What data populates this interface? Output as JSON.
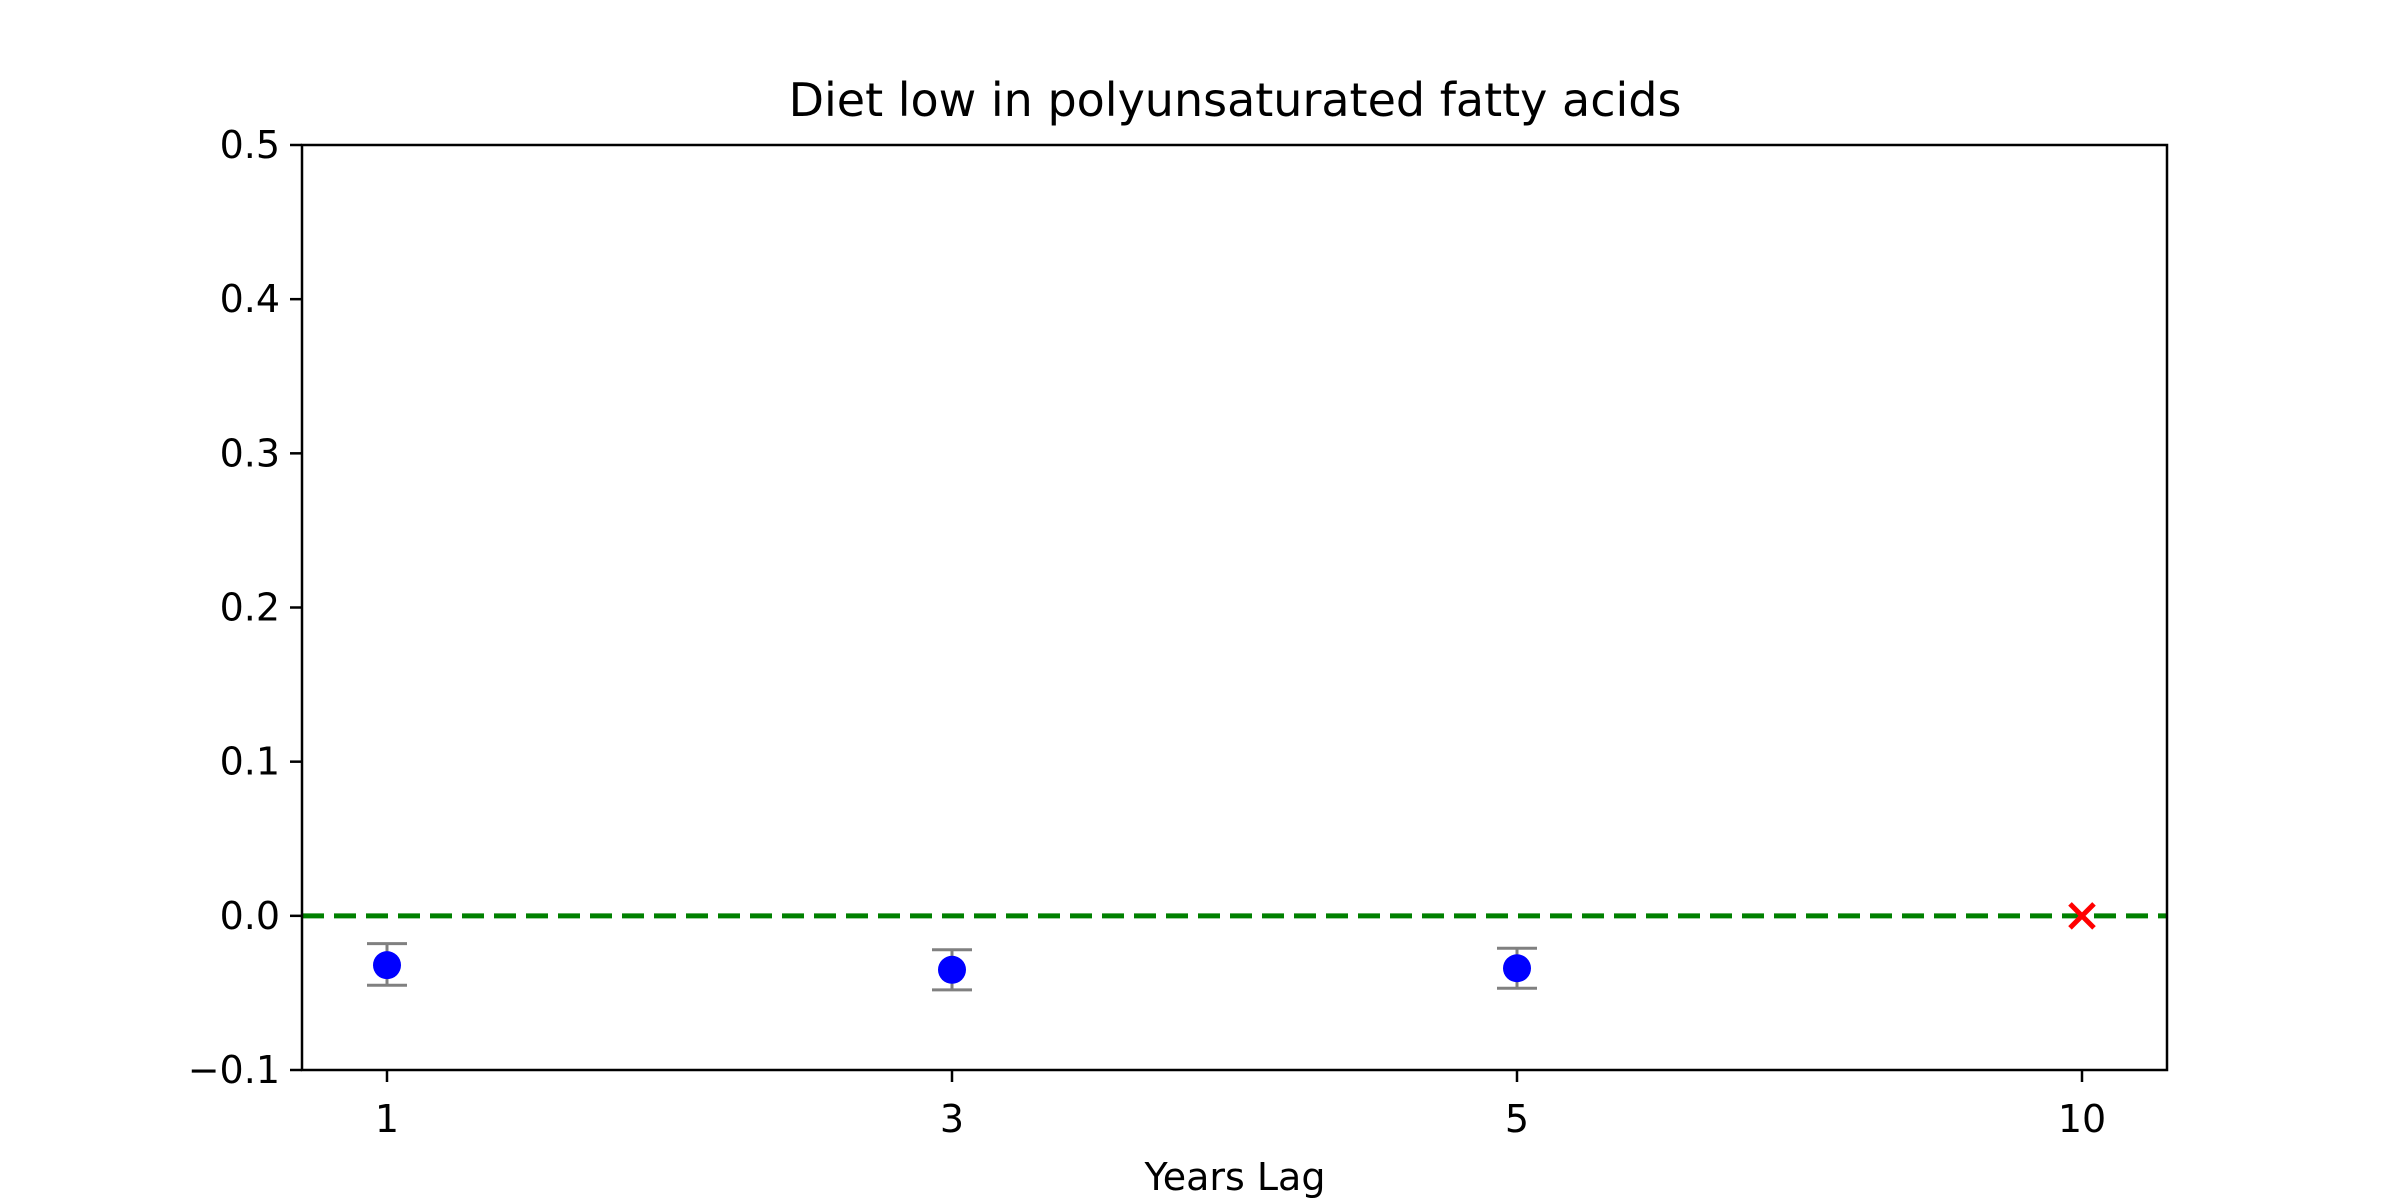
{
  "chart_data": {
    "type": "scatter",
    "title": "Diet low in polyunsaturated fatty acids",
    "xlabel": "Years Lag",
    "ylabel": "",
    "categories": [
      "1",
      "3",
      "5",
      "10"
    ],
    "ylim": [
      -0.1,
      0.5
    ],
    "yticks": [
      "−0.1",
      "0.0",
      "0.1",
      "0.2",
      "0.3",
      "0.4",
      "0.5"
    ],
    "ytick_values": [
      -0.1,
      0.0,
      0.1,
      0.2,
      0.3,
      0.4,
      0.5
    ],
    "grid": false,
    "reference_line": {
      "y": 0.0,
      "style": "dashed",
      "color": "#008000"
    },
    "series": [
      {
        "marker": "circle",
        "color": "#0000ff",
        "errorbar_color": "#808080",
        "points": [
          {
            "x": "1",
            "y": -0.032,
            "lower": -0.045,
            "upper": -0.018
          },
          {
            "x": "3",
            "y": -0.035,
            "lower": -0.048,
            "upper": -0.022
          },
          {
            "x": "5",
            "y": -0.034,
            "lower": -0.047,
            "upper": -0.021
          }
        ]
      },
      {
        "marker": "x",
        "color": "#ff0000",
        "points": [
          {
            "x": "10",
            "y": 0.0
          }
        ]
      }
    ]
  }
}
